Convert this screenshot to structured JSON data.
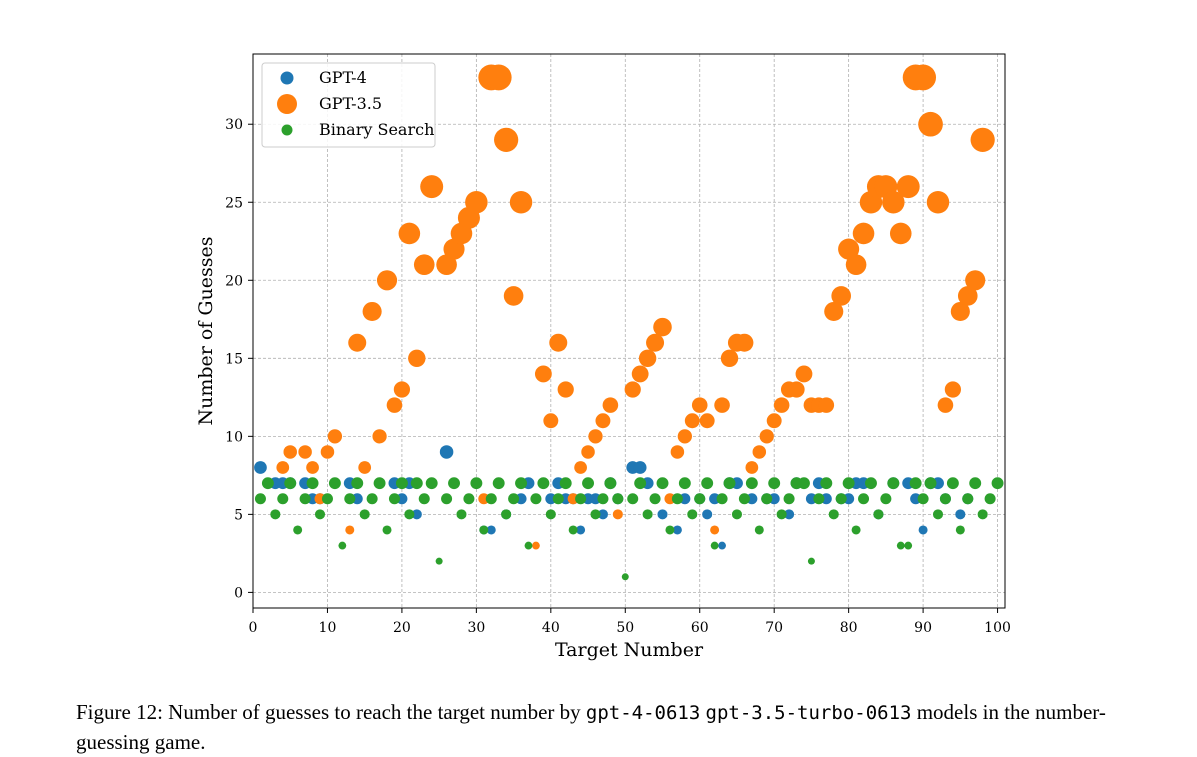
{
  "chart_data": {
    "type": "scatter",
    "xlabel": "Target Number",
    "ylabel": "Number of Guesses",
    "xlim": [
      0,
      101
    ],
    "ylim": [
      -1,
      34.5
    ],
    "xticks": [
      0,
      10,
      20,
      30,
      40,
      50,
      60,
      70,
      80,
      90,
      100
    ],
    "yticks": [
      0,
      5,
      10,
      15,
      20,
      25,
      30
    ],
    "grid": true,
    "legend_position": "top-left",
    "series": [
      {
        "name": "GPT-4",
        "color": "#1f77b4",
        "points": [
          [
            1,
            8
          ],
          [
            3,
            7
          ],
          [
            4,
            7
          ],
          [
            5,
            7
          ],
          [
            7,
            7
          ],
          [
            8,
            6
          ],
          [
            9,
            6
          ],
          [
            13,
            7
          ],
          [
            14,
            6
          ],
          [
            19,
            7
          ],
          [
            20,
            6
          ],
          [
            21,
            7
          ],
          [
            22,
            5
          ],
          [
            26,
            9
          ],
          [
            31,
            4
          ],
          [
            32,
            4
          ],
          [
            34,
            5
          ],
          [
            36,
            6
          ],
          [
            37,
            7
          ],
          [
            40,
            6
          ],
          [
            41,
            7
          ],
          [
            42,
            6
          ],
          [
            43,
            6
          ],
          [
            44,
            4
          ],
          [
            45,
            6
          ],
          [
            46,
            6
          ],
          [
            47,
            5
          ],
          [
            48,
            7
          ],
          [
            49,
            6
          ],
          [
            51,
            8
          ],
          [
            52,
            8
          ],
          [
            53,
            7
          ],
          [
            55,
            5
          ],
          [
            57,
            4
          ],
          [
            58,
            6
          ],
          [
            60,
            6
          ],
          [
            61,
            5
          ],
          [
            62,
            6
          ],
          [
            63,
            3
          ],
          [
            64,
            7
          ],
          [
            65,
            7
          ],
          [
            67,
            6
          ],
          [
            69,
            6
          ],
          [
            70,
            6
          ],
          [
            72,
            5
          ],
          [
            73,
            7
          ],
          [
            75,
            6
          ],
          [
            76,
            7
          ],
          [
            77,
            6
          ],
          [
            79,
            6
          ],
          [
            80,
            6
          ],
          [
            81,
            7
          ],
          [
            82,
            7
          ],
          [
            84,
            5
          ],
          [
            86,
            7
          ],
          [
            88,
            7
          ],
          [
            89,
            6
          ],
          [
            90,
            4
          ],
          [
            91,
            7
          ],
          [
            92,
            7
          ],
          [
            93,
            6
          ],
          [
            95,
            5
          ],
          [
            96,
            6
          ]
        ]
      },
      {
        "name": "GPT-3.5",
        "color": "#ff7f0e",
        "points": [
          [
            4,
            8
          ],
          [
            5,
            9
          ],
          [
            7,
            9
          ],
          [
            8,
            8
          ],
          [
            9,
            6
          ],
          [
            10,
            9
          ],
          [
            11,
            10
          ],
          [
            13,
            4
          ],
          [
            14,
            16
          ],
          [
            15,
            8
          ],
          [
            16,
            18
          ],
          [
            17,
            10
          ],
          [
            18,
            20
          ],
          [
            19,
            12
          ],
          [
            20,
            13
          ],
          [
            21,
            23
          ],
          [
            22,
            15
          ],
          [
            23,
            21
          ],
          [
            24,
            26
          ],
          [
            26,
            21
          ],
          [
            27,
            22
          ],
          [
            28,
            23
          ],
          [
            29,
            24
          ],
          [
            30,
            25
          ],
          [
            31,
            6
          ],
          [
            32,
            33
          ],
          [
            33,
            33
          ],
          [
            34,
            29
          ],
          [
            35,
            19
          ],
          [
            36,
            25
          ],
          [
            38,
            3
          ],
          [
            39,
            14
          ],
          [
            40,
            11
          ],
          [
            41,
            16
          ],
          [
            42,
            13
          ],
          [
            43,
            6
          ],
          [
            44,
            8
          ],
          [
            45,
            9
          ],
          [
            46,
            10
          ],
          [
            47,
            11
          ],
          [
            48,
            12
          ],
          [
            49,
            5
          ],
          [
            51,
            13
          ],
          [
            52,
            14
          ],
          [
            53,
            15
          ],
          [
            54,
            16
          ],
          [
            55,
            17
          ],
          [
            56,
            6
          ],
          [
            57,
            9
          ],
          [
            58,
            10
          ],
          [
            59,
            11
          ],
          [
            60,
            12
          ],
          [
            61,
            11
          ],
          [
            62,
            4
          ],
          [
            63,
            12
          ],
          [
            64,
            15
          ],
          [
            65,
            16
          ],
          [
            66,
            16
          ],
          [
            67,
            8
          ],
          [
            68,
            9
          ],
          [
            69,
            10
          ],
          [
            70,
            11
          ],
          [
            71,
            12
          ],
          [
            72,
            13
          ],
          [
            73,
            13
          ],
          [
            74,
            14
          ],
          [
            75,
            12
          ],
          [
            76,
            12
          ],
          [
            77,
            12
          ],
          [
            78,
            18
          ],
          [
            79,
            19
          ],
          [
            80,
            22
          ],
          [
            81,
            21
          ],
          [
            82,
            23
          ],
          [
            83,
            25
          ],
          [
            84,
            26
          ],
          [
            85,
            26
          ],
          [
            86,
            25
          ],
          [
            87,
            23
          ],
          [
            88,
            26
          ],
          [
            89,
            33
          ],
          [
            90,
            33
          ],
          [
            91,
            30
          ],
          [
            92,
            25
          ],
          [
            93,
            12
          ],
          [
            94,
            13
          ],
          [
            95,
            18
          ],
          [
            96,
            19
          ],
          [
            97,
            20
          ],
          [
            98,
            29
          ]
        ]
      },
      {
        "name": "Binary Search",
        "color": "#2ca02c",
        "points": [
          [
            1,
            6
          ],
          [
            2,
            7
          ],
          [
            3,
            5
          ],
          [
            4,
            6
          ],
          [
            5,
            7
          ],
          [
            6,
            4
          ],
          [
            7,
            6
          ],
          [
            8,
            7
          ],
          [
            9,
            5
          ],
          [
            10,
            6
          ],
          [
            11,
            7
          ],
          [
            12,
            3
          ],
          [
            13,
            6
          ],
          [
            14,
            7
          ],
          [
            15,
            5
          ],
          [
            16,
            6
          ],
          [
            17,
            7
          ],
          [
            18,
            4
          ],
          [
            19,
            6
          ],
          [
            20,
            7
          ],
          [
            21,
            5
          ],
          [
            22,
            7
          ],
          [
            23,
            6
          ],
          [
            24,
            7
          ],
          [
            25,
            2
          ],
          [
            26,
            6
          ],
          [
            27,
            7
          ],
          [
            28,
            5
          ],
          [
            29,
            6
          ],
          [
            30,
            7
          ],
          [
            31,
            4
          ],
          [
            32,
            6
          ],
          [
            33,
            7
          ],
          [
            34,
            5
          ],
          [
            35,
            6
          ],
          [
            36,
            7
          ],
          [
            37,
            3
          ],
          [
            38,
            6
          ],
          [
            39,
            7
          ],
          [
            40,
            5
          ],
          [
            41,
            6
          ],
          [
            42,
            7
          ],
          [
            43,
            4
          ],
          [
            44,
            6
          ],
          [
            45,
            7
          ],
          [
            46,
            5
          ],
          [
            47,
            6
          ],
          [
            48,
            7
          ],
          [
            49,
            6
          ],
          [
            50,
            1
          ],
          [
            51,
            6
          ],
          [
            52,
            7
          ],
          [
            53,
            5
          ],
          [
            54,
            6
          ],
          [
            55,
            7
          ],
          [
            56,
            4
          ],
          [
            57,
            6
          ],
          [
            58,
            7
          ],
          [
            59,
            5
          ],
          [
            60,
            6
          ],
          [
            61,
            7
          ],
          [
            62,
            3
          ],
          [
            63,
            6
          ],
          [
            64,
            7
          ],
          [
            65,
            5
          ],
          [
            66,
            6
          ],
          [
            67,
            7
          ],
          [
            68,
            4
          ],
          [
            69,
            6
          ],
          [
            70,
            7
          ],
          [
            71,
            5
          ],
          [
            72,
            6
          ],
          [
            73,
            7
          ],
          [
            74,
            7
          ],
          [
            75,
            2
          ],
          [
            76,
            6
          ],
          [
            77,
            7
          ],
          [
            78,
            5
          ],
          [
            79,
            6
          ],
          [
            80,
            7
          ],
          [
            81,
            4
          ],
          [
            82,
            6
          ],
          [
            83,
            7
          ],
          [
            84,
            5
          ],
          [
            85,
            6
          ],
          [
            86,
            7
          ],
          [
            87,
            3
          ],
          [
            88,
            3
          ],
          [
            89,
            7
          ],
          [
            90,
            6
          ],
          [
            91,
            7
          ],
          [
            92,
            5
          ],
          [
            93,
            6
          ],
          [
            94,
            7
          ],
          [
            95,
            4
          ],
          [
            96,
            6
          ],
          [
            97,
            7
          ],
          [
            98,
            5
          ],
          [
            99,
            6
          ],
          [
            100,
            7
          ]
        ]
      }
    ]
  },
  "caption": {
    "prefix": "Figure 12: Number of guesses to reach the target number by",
    "model_a": "gpt-4-0613",
    "model_b": "gpt-3.5-turbo-0613",
    "suffix": "models in the number-guessing game."
  }
}
